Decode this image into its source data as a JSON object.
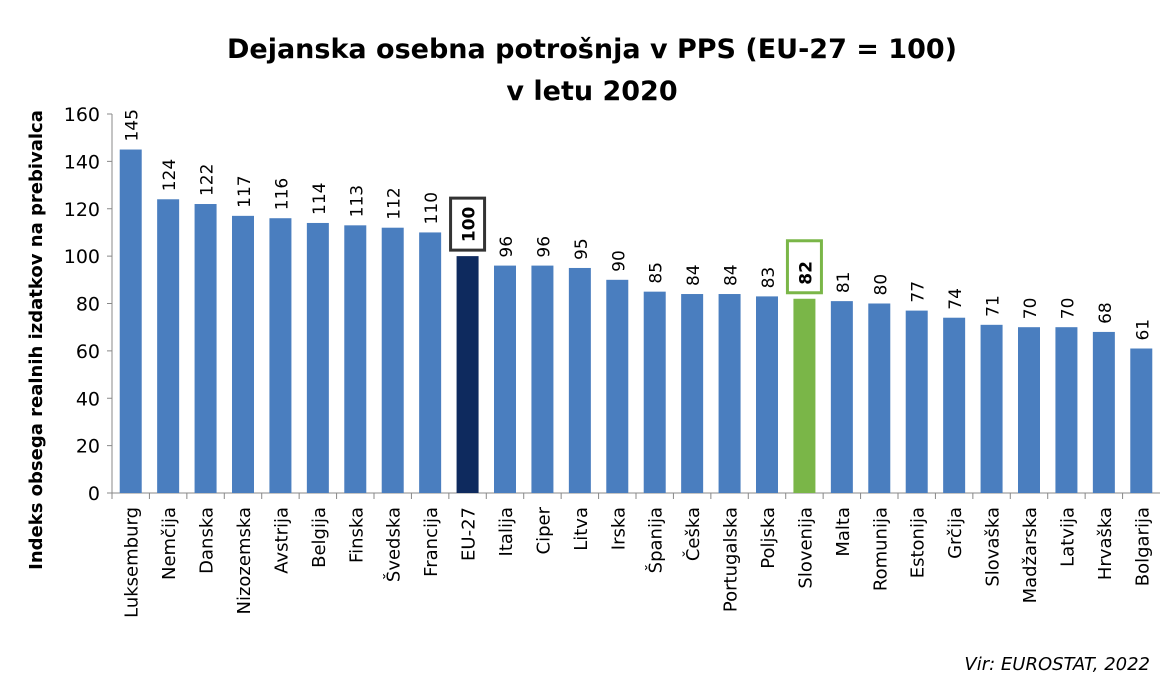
{
  "chart_data": {
    "type": "bar",
    "title": [
      "Dejanska osebna potrošnja v PPS (EU-27 = 100)",
      "v letu 2020"
    ],
    "ylabel": "Indeks obsega realnih izdatkov na prebivalca",
    "source": "Vir: EUROSTAT, 2022",
    "categories": [
      "Luksemburg",
      "Nemčija",
      "Danska",
      "Nizozemska",
      "Avstrija",
      "Belgija",
      "Finska",
      "Švedska",
      "Francija",
      "EU-27",
      "Italija",
      "Ciper",
      "Litva",
      "Irska",
      "Španija",
      "Češka",
      "Portugalska",
      "Poljska",
      "Slovenija",
      "Malta",
      "Romunija",
      "Estonija",
      "Grčija",
      "Slovaška",
      "Madžarska",
      "Latvija",
      "Hrvaška",
      "Bolgarija"
    ],
    "values": [
      145,
      124,
      122,
      117,
      116,
      114,
      113,
      112,
      110,
      100,
      96,
      96,
      95,
      90,
      85,
      84,
      84,
      83,
      82,
      81,
      80,
      77,
      74,
      71,
      70,
      70,
      68,
      61
    ],
    "color": "#4a7ebf",
    "colors": [
      "#4a7ebf",
      "#4a7ebf",
      "#4a7ebf",
      "#4a7ebf",
      "#4a7ebf",
      "#4a7ebf",
      "#4a7ebf",
      "#4a7ebf",
      "#4a7ebf",
      "#0e2a5e",
      "#4a7ebf",
      "#4a7ebf",
      "#4a7ebf",
      "#4a7ebf",
      "#4a7ebf",
      "#4a7ebf",
      "#4a7ebf",
      "#4a7ebf",
      "#7ab648",
      "#4a7ebf",
      "#4a7ebf",
      "#4a7ebf",
      "#4a7ebf",
      "#4a7ebf",
      "#4a7ebf",
      "#4a7ebf",
      "#4a7ebf",
      "#4a7ebf"
    ],
    "ylim": [
      0,
      160
    ],
    "yticks": [
      0,
      20,
      40,
      60,
      80,
      100,
      120,
      140,
      160
    ],
    "grid": false
  }
}
